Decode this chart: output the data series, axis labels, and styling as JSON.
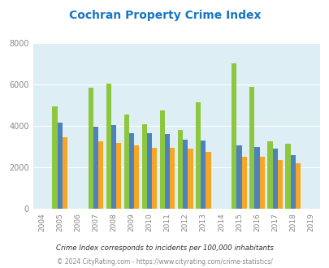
{
  "title": "Cochran Property Crime Index",
  "years": [
    2004,
    2005,
    2006,
    2007,
    2008,
    2009,
    2010,
    2011,
    2012,
    2013,
    2014,
    2015,
    2016,
    2017,
    2018,
    2019
  ],
  "cochran": [
    null,
    4950,
    null,
    5850,
    6050,
    4550,
    4100,
    4750,
    3800,
    5150,
    null,
    7000,
    5900,
    3250,
    3150,
    null
  ],
  "georgia": [
    null,
    4150,
    null,
    3950,
    4050,
    3650,
    3650,
    3600,
    3350,
    3300,
    null,
    3050,
    3000,
    2900,
    2600,
    null
  ],
  "national": [
    null,
    3450,
    null,
    3250,
    3200,
    3050,
    2950,
    2950,
    2900,
    2750,
    null,
    2500,
    2500,
    2350,
    2200,
    null
  ],
  "cochran_color": "#8dc63f",
  "georgia_color": "#4f81bd",
  "national_color": "#f5a623",
  "bg_color": "#ddeef4",
  "plot_bg": "#ddeef4",
  "ylim": [
    0,
    8000
  ],
  "yticks": [
    0,
    2000,
    4000,
    6000,
    8000
  ],
  "footnote1": "Crime Index corresponds to incidents per 100,000 inhabitants",
  "footnote2": "© 2024 CityRating.com - https://www.cityrating.com/crime-statistics/",
  "title_color": "#1777c4",
  "footnote1_color": "#333333",
  "footnote2_color": "#888888",
  "legend_text_color": "#333333",
  "tick_color": "#888888",
  "grid_color": "#ffffff",
  "bar_width": 0.28
}
